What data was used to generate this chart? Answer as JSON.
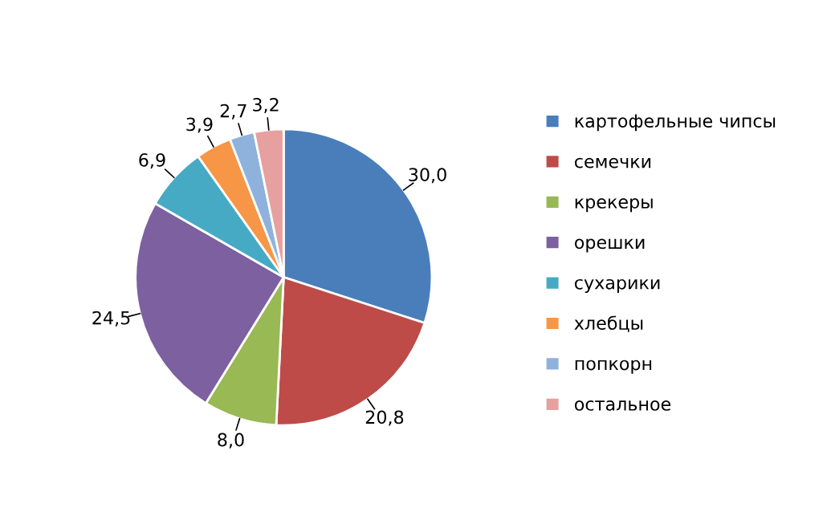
{
  "chart_data": {
    "type": "pie",
    "categories": [
      "картофельные чипсы",
      "семечки",
      "крекеры",
      "орешки",
      "сухарики",
      "хлебцы",
      "попкорн",
      "остальное"
    ],
    "values": [
      30.0,
      20.8,
      8.0,
      24.5,
      6.9,
      3.9,
      2.7,
      3.2
    ],
    "value_labels": [
      "30,0",
      "20,8",
      "8,0",
      "24,5",
      "6,9",
      "3,9",
      "2,7",
      "3,2"
    ],
    "colors": [
      "#4a7ebb",
      "#be4b48",
      "#98b954",
      "#7d60a0",
      "#46aac5",
      "#f79646",
      "#8fb2dc",
      "#e6a0a0"
    ],
    "legend": "right"
  }
}
